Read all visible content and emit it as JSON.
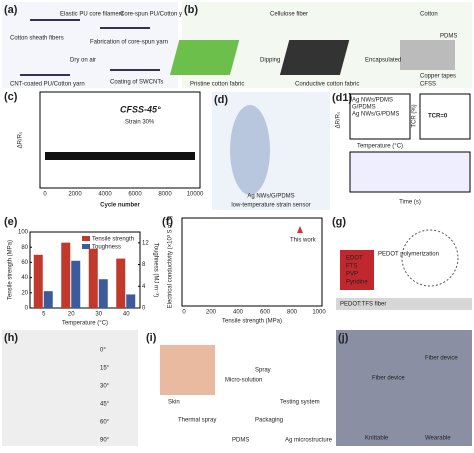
{
  "a": {
    "label": "(a)",
    "texts": [
      "Elastic PU core filament",
      "Core-spun PU/Cotton yarn",
      "Fabrication of core-spun yarn",
      "Cotton sheath fibers",
      "Dry on air",
      "CNT-coated PU/Cotton yarn",
      "Coating of SWCNTs"
    ]
  },
  "b": {
    "label": "(b)",
    "texts": [
      "Cellulose fiber",
      "Cotton",
      "PDMS",
      "Dipping",
      "Encapsulated",
      "Copper tapes",
      "Pristine cotton fabric",
      "Conductive cotton fabric",
      "CFSS"
    ]
  },
  "c": {
    "label": "(c)",
    "title": "CFSS-45°",
    "subtitle": "Strain 30%",
    "x_label": "Cycle number",
    "y_label": "ΔR/R₀",
    "xticks": [
      "0",
      "2000",
      "4000",
      "6000",
      "8000",
      "10000"
    ]
  },
  "d": {
    "label": "(d)",
    "caption": "Ag NWs/G/PDMS",
    "caption2": "low-temperature strain sensor"
  },
  "d1": {
    "label": "(d1)",
    "x_label": "Temperature (°C)",
    "y_label": "ΔR/R₀",
    "y2_label": "TCR (%)",
    "badge": "TCR=0",
    "time_label": "Time (s)",
    "legend": [
      "Ag NWs/PDMS",
      "G/PDMS",
      "Ag NWs/G/PDMS"
    ]
  },
  "e": {
    "label": "(e)",
    "categories": [
      "5",
      "20",
      "30",
      "40"
    ],
    "x_label": "Temperature (°C)",
    "y_label": "Tensile strength (MPa)",
    "y2_label": "Toughness (MJ m⁻³)",
    "series": [
      {
        "name": "Tensile strength",
        "color": "#c0392b",
        "values": [
          70,
          86,
          78,
          65
        ]
      },
      {
        "name": "Toughness",
        "color": "#3b5b9a",
        "axis": "y2",
        "values": [
          3.1,
          8.7,
          5.3,
          2.5
        ]
      }
    ],
    "ylim": [
      0,
      100
    ],
    "yticks": [
      0,
      20,
      40,
      60,
      80,
      100
    ],
    "y2lim": [
      0,
      14
    ],
    "y2ticks": [
      0,
      4,
      8,
      12
    ]
  },
  "f": {
    "label": "(f)",
    "x_label": "Tensile strength (MPa)",
    "y_label": "Electrical conductivity (×10³ S m⁻¹)",
    "annotation": "This work",
    "xticks": [
      "0",
      "200",
      "400",
      "600",
      "800",
      "1000"
    ]
  },
  "g": {
    "label": "(g)",
    "texts": [
      "EDOT",
      "FTS",
      "PVP",
      "Pyridine",
      "PEDOT polymerization",
      "PEDOT:TFS fiber"
    ]
  },
  "h": {
    "label": "(h)",
    "angles": [
      "0°",
      "15°",
      "30°",
      "45°",
      "60°",
      "90°"
    ]
  },
  "i": {
    "label": "(i)",
    "texts": [
      "Skin",
      "Micro-solution",
      "Spray",
      "Testing system",
      "Thermal spray",
      "PDMS",
      "Packaging",
      "Ag microstructure"
    ]
  },
  "j": {
    "label": "(j)",
    "texts": [
      "Fiber device",
      "Fiber device",
      "Knittable",
      "Wearable"
    ]
  }
}
